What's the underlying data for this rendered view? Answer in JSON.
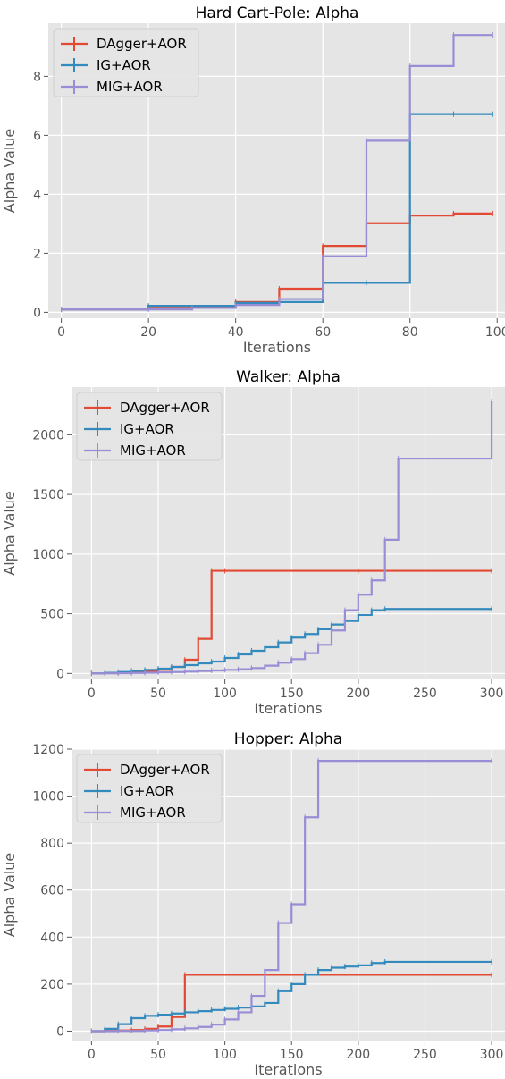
{
  "chart_data": [
    {
      "type": "line",
      "title": "Hard Cart-Pole: Alpha",
      "xlabel": "Iterations",
      "ylabel": "Alpha Value",
      "xlim": [
        -3,
        102
      ],
      "ylim": [
        -0.2,
        9.8
      ],
      "xticks": [
        0,
        20,
        40,
        60,
        80,
        100
      ],
      "yticks": [
        0,
        2,
        4,
        6,
        8
      ],
      "grid": true,
      "legend_position": "top-left",
      "series": [
        {
          "name": "DAgger+AOR",
          "color": "#E24A33",
          "x": [
            0,
            20,
            40,
            50,
            60,
            70,
            80,
            90,
            99
          ],
          "y": [
            0.1,
            0.2,
            0.35,
            0.8,
            2.25,
            3.02,
            3.28,
            3.35,
            3.35
          ]
        },
        {
          "name": "IG+AOR",
          "color": "#348ABD",
          "x": [
            0,
            20,
            40,
            50,
            60,
            70,
            80,
            90,
            99
          ],
          "y": [
            0.1,
            0.22,
            0.32,
            0.35,
            1.0,
            1.0,
            6.72,
            6.72,
            6.72
          ]
        },
        {
          "name": "MIG+AOR",
          "color": "#988ED5",
          "x": [
            0,
            20,
            30,
            40,
            50,
            60,
            70,
            80,
            90,
            99
          ],
          "y": [
            0.1,
            0.1,
            0.15,
            0.25,
            0.45,
            1.9,
            5.82,
            8.35,
            9.4,
            9.4
          ]
        }
      ]
    },
    {
      "type": "line",
      "title": "Walker: Alpha",
      "xlabel": "Iterations",
      "ylabel": "Alpha Value",
      "xlim": [
        -15,
        310
      ],
      "ylim": [
        -50,
        2400
      ],
      "xticks": [
        0,
        50,
        100,
        150,
        200,
        250,
        300
      ],
      "yticks": [
        0,
        500,
        1000,
        1500,
        2000
      ],
      "grid": true,
      "legend_position": "top-left",
      "series": [
        {
          "name": "DAgger+AOR",
          "color": "#E24A33",
          "x": [
            0,
            10,
            20,
            30,
            40,
            50,
            60,
            70,
            80,
            90,
            100,
            200,
            300
          ],
          "y": [
            0,
            2,
            5,
            10,
            18,
            30,
            55,
            115,
            290,
            860,
            860,
            860,
            860
          ]
        },
        {
          "name": "IG+AOR",
          "color": "#348ABD",
          "x": [
            0,
            10,
            20,
            30,
            40,
            50,
            60,
            70,
            80,
            90,
            100,
            110,
            120,
            130,
            140,
            150,
            160,
            170,
            180,
            190,
            200,
            210,
            220,
            300
          ],
          "y": [
            0,
            5,
            12,
            22,
            30,
            40,
            55,
            70,
            85,
            100,
            130,
            160,
            190,
            220,
            260,
            300,
            330,
            370,
            410,
            440,
            490,
            530,
            540,
            540
          ]
        },
        {
          "name": "MIG+AOR",
          "color": "#988ED5",
          "x": [
            0,
            10,
            20,
            30,
            40,
            50,
            60,
            70,
            80,
            90,
            100,
            110,
            120,
            130,
            140,
            150,
            160,
            170,
            180,
            190,
            200,
            210,
            220,
            230,
            300
          ],
          "y": [
            0,
            1,
            2,
            4,
            6,
            9,
            12,
            15,
            20,
            25,
            30,
            35,
            45,
            65,
            90,
            120,
            170,
            240,
            360,
            530,
            660,
            780,
            1120,
            1800,
            2280
          ]
        }
      ]
    },
    {
      "type": "line",
      "title": "Hopper: Alpha",
      "xlabel": "Iterations",
      "ylabel": "Alpha Value",
      "xlim": [
        -15,
        310
      ],
      "ylim": [
        -40,
        1200
      ],
      "xticks": [
        0,
        50,
        100,
        150,
        200,
        250,
        300
      ],
      "yticks": [
        0,
        200,
        400,
        600,
        800,
        1000,
        1200
      ],
      "grid": true,
      "legend_position": "top-left",
      "series": [
        {
          "name": "DAgger+AOR",
          "color": "#E24A33",
          "x": [
            0,
            10,
            20,
            30,
            40,
            50,
            60,
            70,
            300
          ],
          "y": [
            0,
            1,
            3,
            5,
            10,
            20,
            60,
            240,
            240
          ]
        },
        {
          "name": "IG+AOR",
          "color": "#348ABD",
          "x": [
            0,
            10,
            20,
            30,
            40,
            50,
            60,
            70,
            80,
            90,
            100,
            110,
            120,
            130,
            140,
            150,
            160,
            170,
            180,
            190,
            200,
            210,
            220,
            300
          ],
          "y": [
            0,
            10,
            30,
            55,
            65,
            70,
            75,
            80,
            85,
            90,
            95,
            100,
            105,
            120,
            170,
            200,
            240,
            260,
            270,
            275,
            280,
            290,
            295,
            295
          ]
        },
        {
          "name": "MIG+AOR",
          "color": "#988ED5",
          "x": [
            0,
            20,
            40,
            50,
            60,
            70,
            80,
            90,
            100,
            110,
            120,
            130,
            140,
            150,
            160,
            170,
            300
          ],
          "y": [
            0,
            1,
            3,
            5,
            8,
            12,
            18,
            28,
            50,
            80,
            150,
            260,
            460,
            540,
            910,
            1150,
            1150
          ]
        }
      ]
    }
  ]
}
